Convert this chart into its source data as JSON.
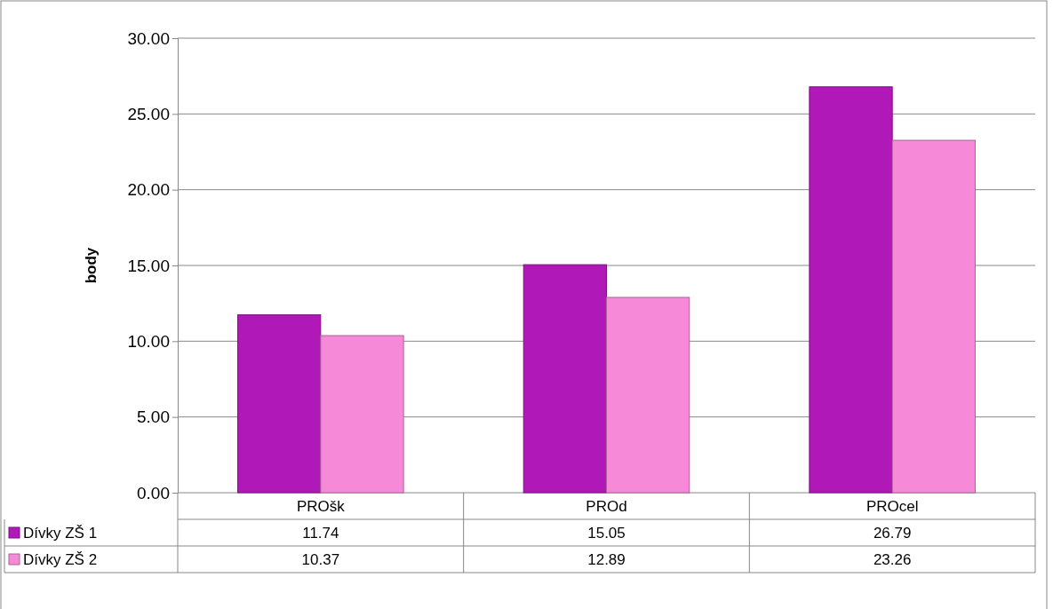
{
  "chart_data": {
    "type": "bar",
    "ylabel": "body",
    "categories": [
      "PROšk",
      "PROd",
      "PROcel"
    ],
    "series": [
      {
        "name": "Dívky ZŠ 1",
        "color": "#b018b8",
        "values": [
          11.74,
          15.05,
          26.79
        ]
      },
      {
        "name": "Dívky ZŠ 2",
        "color": "#f78ad8",
        "values": [
          10.37,
          12.89,
          23.26
        ]
      }
    ],
    "ylim": [
      0,
      30
    ],
    "yticks": [
      {
        "value": 0,
        "label": "0.00"
      },
      {
        "value": 5,
        "label": "5.00"
      },
      {
        "value": 10,
        "label": "10.00"
      },
      {
        "value": 15,
        "label": "15.00"
      },
      {
        "value": 20,
        "label": "20.00"
      },
      {
        "value": 25,
        "label": "25.00"
      },
      {
        "value": 30,
        "label": "30.00"
      }
    ],
    "grid": "y",
    "legend": "bottom",
    "data_labels": true
  }
}
